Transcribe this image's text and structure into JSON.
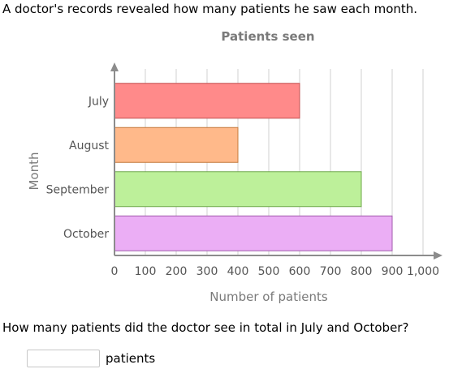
{
  "problem": {
    "intro": "A doctor's records revealed how many patients he saw each month.",
    "question": "How many patients did the doctor see in total in July and October?",
    "answer": {
      "value": "",
      "placeholder": "",
      "unit": "patients"
    }
  },
  "chart_data": {
    "type": "bar",
    "orientation": "horizontal",
    "title": "Patients seen",
    "xlabel": "Number of patients",
    "ylabel": "Month",
    "categories": [
      "July",
      "August",
      "September",
      "October"
    ],
    "values": [
      600,
      400,
      800,
      900
    ],
    "xlim": [
      0,
      1000
    ],
    "xticks": [
      "0",
      "100",
      "200",
      "300",
      "400",
      "500",
      "600",
      "700",
      "800",
      "900",
      "1,000"
    ],
    "grid": "vertical",
    "legend": "none",
    "colors": {
      "fills": [
        "#ff8a8a",
        "#ffb98a",
        "#bdf09a",
        "#ebaef5"
      ],
      "strokes": [
        "#c25050",
        "#c4793a",
        "#6ea84a",
        "#a15aad"
      ],
      "grid": "#d0d0d0",
      "axis": "#8c8c8c",
      "text": "#555555",
      "title": "#7a7a7a"
    }
  }
}
